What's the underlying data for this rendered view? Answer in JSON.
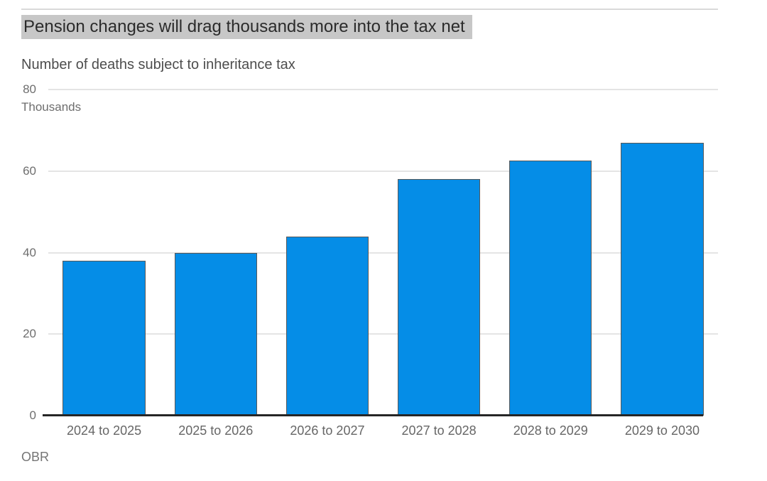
{
  "header": {
    "title": "Pension changes will drag thousands more into the tax net",
    "subtitle": "Number of deaths subject to inheritance tax",
    "source": "OBR"
  },
  "chart_data": {
    "type": "bar",
    "title": "Pension changes will drag thousands more into the tax net",
    "subtitle": "Number of deaths subject to inheritance tax",
    "categories": [
      "2024 to 2025",
      "2025 to 2026",
      "2026 to 2027",
      "2027 to 2028",
      "2028 to 2029",
      "2029 to 2030"
    ],
    "values": [
      38,
      40,
      44,
      58,
      62.5,
      67
    ],
    "unit_label": "Thousands",
    "xlabel": "",
    "ylabel": "Thousands",
    "ylim": [
      0,
      80
    ],
    "yticks": [
      0,
      20,
      40,
      60,
      80
    ],
    "grid": true,
    "legend": "none",
    "source": "OBR"
  },
  "colors": {
    "bar_fill": "#058de7",
    "bar_border": "#595959",
    "grid_line": "#e4e4e4",
    "axis_line": "#262626",
    "rule_line": "#d9d9d9",
    "title_highlight": "#c7c7c7",
    "title_text": "#2b2b2b",
    "subtitle_text": "#4d4d4d",
    "tick_text": "#6e6e6e",
    "xlabel_text": "#666666",
    "source_text": "#757575"
  }
}
